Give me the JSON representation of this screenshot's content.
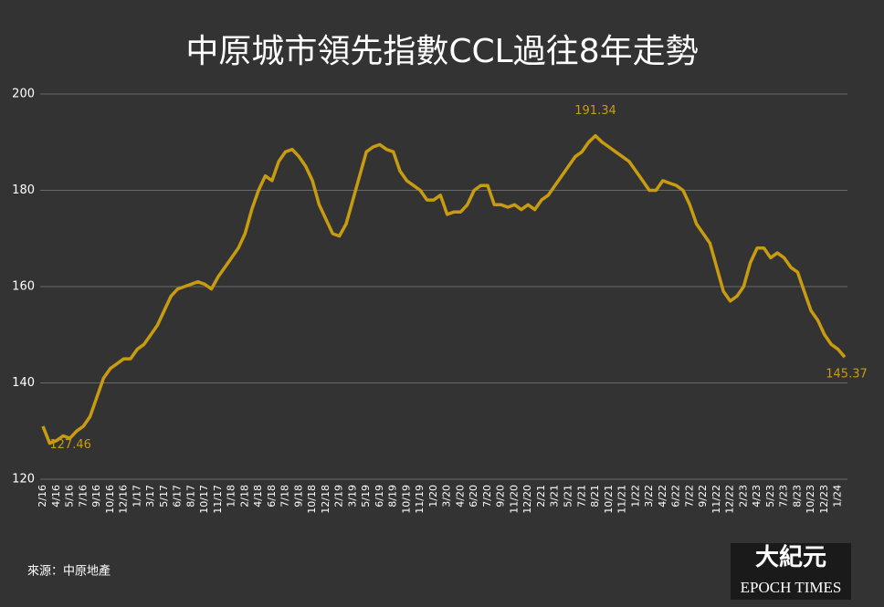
{
  "chart_data": {
    "type": "line",
    "title": "中原城市領先指數CCL過往8年走勢",
    "source": "來源：中原地產",
    "categories": [
      "2/16",
      null,
      "4/16",
      null,
      "5/16",
      null,
      "7/16",
      null,
      "9/16",
      null,
      "10/16",
      null,
      "12/16",
      null,
      "1/17",
      null,
      "3/17",
      null,
      "5/17",
      null,
      "6/17",
      null,
      "8/17",
      null,
      "10/17",
      null,
      "11/17",
      null,
      "1/18",
      null,
      "2/18",
      null,
      "4/18",
      null,
      "6/18",
      null,
      "7/18",
      null,
      "9/18",
      null,
      "10/18",
      null,
      "12/18",
      null,
      "2/19",
      null,
      "3/19",
      null,
      "5/19",
      null,
      "6/19",
      null,
      "8/19",
      null,
      "10/19",
      null,
      "11/19",
      null,
      "1/20",
      null,
      "3/20",
      null,
      "4/20",
      null,
      "6/20",
      null,
      "7/20",
      null,
      "9/20",
      null,
      "11/20",
      null,
      "12/20",
      null,
      "2/21",
      null,
      "3/21",
      null,
      "5/21",
      null,
      "7/21",
      null,
      "8/21",
      null,
      "10/21",
      null,
      "11/21",
      null,
      "1/22",
      null,
      "3/22",
      null,
      "4/22",
      null,
      "6/22",
      null,
      "7/22",
      null,
      "9/22",
      null,
      "11/22",
      null,
      "12/22",
      null,
      "2/23",
      null,
      "4/23",
      null,
      "5/23",
      null,
      "7/23",
      null,
      "8/23",
      null,
      "10/23",
      null,
      "12/23",
      null,
      "1/24",
      null
    ],
    "series": [
      {
        "color": "#c89c10",
        "values": [
          131,
          127.46,
          128,
          129,
          128.5,
          130,
          131,
          133,
          137,
          141,
          143,
          144,
          145,
          145,
          147,
          148,
          150,
          152,
          155,
          158,
          159.5,
          160,
          160.5,
          161,
          160.5,
          159.5,
          162,
          164,
          166,
          168,
          171,
          176,
          180,
          183,
          182,
          186,
          188,
          188.5,
          187,
          185,
          182,
          177,
          174,
          171,
          170.5,
          173,
          178,
          183,
          188,
          189,
          189.5,
          188.5,
          188,
          184,
          182,
          181,
          180,
          178,
          178,
          179,
          175,
          175.5,
          175.5,
          177,
          180,
          181,
          181,
          177,
          177,
          176.5,
          177,
          176,
          177,
          176,
          178,
          179,
          181,
          183,
          185,
          187,
          188,
          190,
          191.34,
          190,
          189,
          188,
          187,
          186,
          184,
          182,
          180,
          180,
          182,
          181.5,
          181,
          180,
          177,
          173,
          171,
          169,
          164,
          159,
          157,
          158,
          160,
          165,
          168,
          168,
          166,
          167,
          166,
          164,
          163,
          159,
          155,
          153,
          150,
          148,
          147,
          145.37
        ],
        "value_labels": [
          null,
          "127.46",
          null,
          null,
          null,
          null,
          null,
          null,
          null,
          null,
          null,
          null,
          null,
          null,
          null,
          null,
          null,
          null,
          null,
          null,
          null,
          null,
          null,
          null,
          null,
          null,
          null,
          null,
          null,
          null,
          null,
          null,
          null,
          null,
          null,
          null,
          null,
          null,
          null,
          null,
          null,
          null,
          null,
          null,
          null,
          null,
          null,
          null,
          null,
          null,
          null,
          null,
          null,
          null,
          null,
          null,
          null,
          null,
          null,
          null,
          null,
          null,
          null,
          null,
          null,
          null,
          null,
          null,
          null,
          null,
          null,
          null,
          null,
          null,
          null,
          null,
          null,
          null,
          null,
          null,
          null,
          null,
          "191.34",
          null,
          null,
          null,
          null,
          null,
          null,
          null,
          null,
          null,
          null,
          null,
          null,
          null,
          null,
          null,
          null,
          null,
          null,
          null,
          null,
          null,
          null,
          null,
          null,
          null,
          null,
          null,
          null,
          null,
          null,
          null,
          null,
          null,
          null,
          null,
          null,
          "145.37"
        ]
      }
    ],
    "ylim": [
      120,
      200
    ],
    "yticks": [
      120,
      140,
      160,
      180,
      200
    ],
    "grid": true
  },
  "logo": {
    "chinese": "大紀元",
    "english": "EPOCH TIMES"
  }
}
